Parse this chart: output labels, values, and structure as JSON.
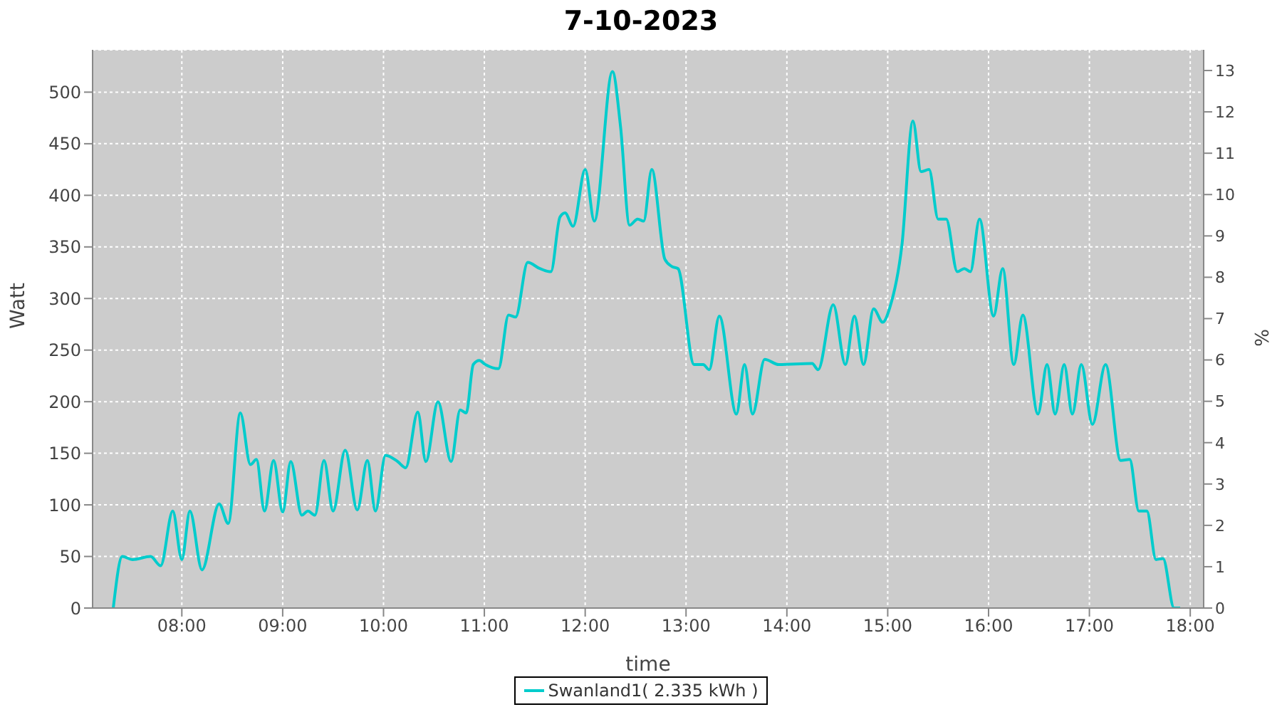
{
  "chart_data": {
    "type": "line",
    "title": "7-10-2023",
    "xlabel": "time",
    "ylabel": "Watt",
    "y2label": "%",
    "xlim": [
      7.115,
      18.133
    ],
    "xticks": [
      {
        "value": 8,
        "label": "08:00"
      },
      {
        "value": 9,
        "label": "09:00"
      },
      {
        "value": 10,
        "label": "10:00"
      },
      {
        "value": 11,
        "label": "11:00"
      },
      {
        "value": 12,
        "label": "12:00"
      },
      {
        "value": 13,
        "label": "13:00"
      },
      {
        "value": 14,
        "label": "14:00"
      },
      {
        "value": 15,
        "label": "15:00"
      },
      {
        "value": 16,
        "label": "16:00"
      },
      {
        "value": 17,
        "label": "17:00"
      },
      {
        "value": 18,
        "label": "18:00"
      }
    ],
    "ylim": [
      0,
      541
    ],
    "yticks": [
      0,
      50,
      100,
      150,
      200,
      250,
      300,
      350,
      400,
      450,
      500
    ],
    "y2lim": [
      0,
      13.5
    ],
    "y2ticks": [
      0,
      1,
      2,
      3,
      4,
      5,
      6,
      7,
      8,
      9,
      10,
      11,
      12,
      13
    ],
    "x": [
      7.32,
      7.41,
      7.51,
      7.69,
      7.79,
      7.91,
      8.0,
      8.08,
      8.2,
      8.37,
      8.46,
      8.58,
      8.68,
      8.74,
      8.82,
      8.91,
      9.0,
      9.08,
      9.19,
      9.25,
      9.32,
      9.41,
      9.5,
      9.62,
      9.74,
      9.84,
      9.92,
      10.02,
      10.14,
      10.22,
      10.34,
      10.42,
      10.54,
      10.67,
      10.76,
      10.82,
      10.89,
      10.95,
      11.01,
      11.14,
      11.24,
      11.31,
      11.43,
      11.55,
      11.66,
      11.75,
      11.8,
      11.88,
      12.0,
      12.09,
      12.27,
      12.35,
      12.44,
      12.52,
      12.58,
      12.66,
      12.79,
      12.86,
      12.92,
      13.08,
      13.17,
      13.23,
      13.33,
      13.5,
      13.58,
      13.66,
      13.78,
      13.92,
      14.25,
      14.31,
      14.46,
      14.58,
      14.67,
      14.76,
      14.86,
      14.95,
      15.02,
      15.14,
      15.25,
      15.33,
      15.41,
      15.5,
      15.58,
      15.69,
      15.76,
      15.82,
      15.91,
      16.05,
      16.14,
      16.25,
      16.34,
      16.49,
      16.58,
      16.66,
      16.75,
      16.83,
      16.92,
      17.03,
      17.16,
      17.31,
      17.4,
      17.49,
      17.57,
      17.66,
      17.73,
      17.84,
      17.9
    ],
    "series": [
      {
        "name": "Swanland1( 2.335 kWh )",
        "color": "#00cccc",
        "values": [
          0,
          50,
          47,
          50,
          41,
          94,
          47,
          94,
          37,
          101,
          82,
          189,
          139,
          144,
          94,
          143,
          93,
          142,
          90,
          94,
          90,
          143,
          94,
          153,
          95,
          143,
          94,
          148,
          142,
          136,
          190,
          142,
          200,
          142,
          192,
          189,
          236,
          240,
          236,
          232,
          284,
          282,
          335,
          329,
          326,
          379,
          383,
          370,
          425,
          375,
          520,
          467,
          371,
          377,
          375,
          425,
          338,
          331,
          329,
          236,
          236,
          231,
          283,
          188,
          236,
          188,
          241,
          236,
          237,
          231,
          294,
          236,
          283,
          236,
          290,
          277,
          291,
          351,
          472,
          423,
          425,
          377,
          377,
          326,
          329,
          326,
          377,
          283,
          329,
          236,
          284,
          188,
          236,
          188,
          236,
          188,
          236,
          178,
          236,
          143,
          144,
          94,
          94,
          47,
          48,
          0,
          0
        ]
      }
    ],
    "grid": true,
    "legend": "bottom",
    "marker": "none",
    "line_style": "solid"
  }
}
